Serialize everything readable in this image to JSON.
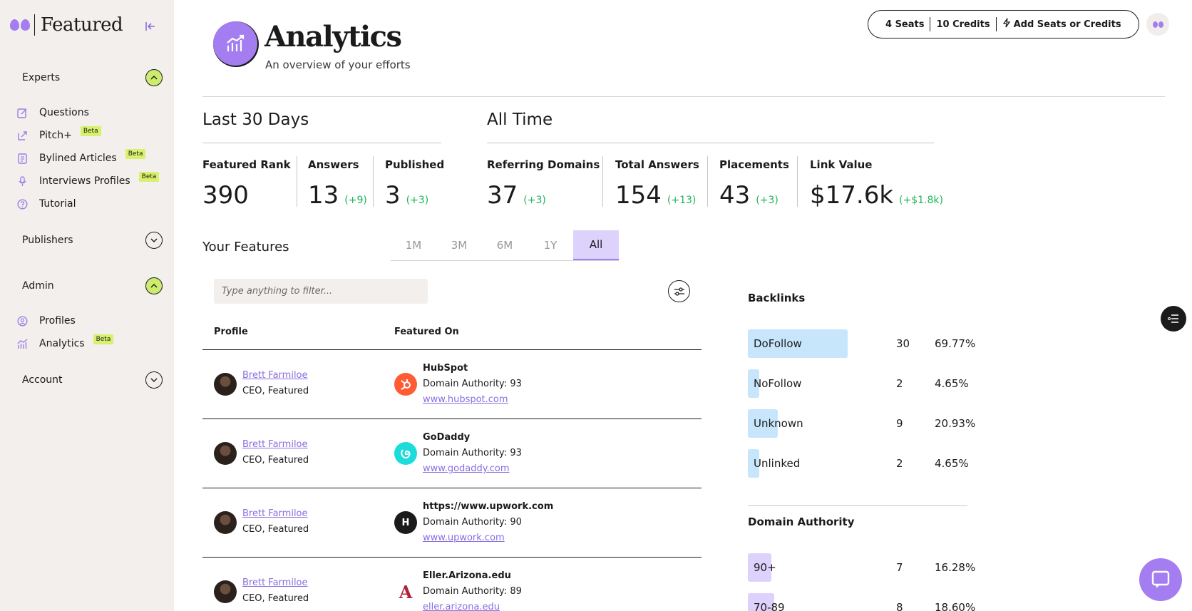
{
  "brand": {
    "name": "Featured"
  },
  "sidebar": {
    "sections": [
      {
        "label": "Experts",
        "expanded": true
      },
      {
        "label": "Publishers",
        "expanded": false
      },
      {
        "label": "Admin",
        "expanded": true
      },
      {
        "label": "Account",
        "expanded": false
      }
    ],
    "expert_items": [
      {
        "label": "Questions",
        "icon": "edit-icon"
      },
      {
        "label": "Pitch+",
        "icon": "share-icon",
        "badge": "Beta"
      },
      {
        "label": "Bylined Articles",
        "icon": "article-icon",
        "badge": "Beta"
      },
      {
        "label": "Interviews Profiles",
        "icon": "microphone-icon",
        "badge": "Beta"
      },
      {
        "label": "Tutorial",
        "icon": "help-icon"
      }
    ],
    "admin_items": [
      {
        "label": "Profiles",
        "icon": "user-icon"
      },
      {
        "label": "Analytics",
        "icon": "chart-icon",
        "badge": "Beta"
      }
    ]
  },
  "header": {
    "title": "Analytics",
    "subtitle": "An overview of your efforts"
  },
  "topbar": {
    "seats": "4 Seats",
    "credits": "10 Credits",
    "add_label": "Add Seats or Credits"
  },
  "last30": {
    "title": "Last 30 Days",
    "stats": [
      {
        "label": "Featured Rank",
        "value": "390",
        "delta": ""
      },
      {
        "label": "Answers",
        "value": "13",
        "delta": "(+9)"
      },
      {
        "label": "Published",
        "value": "3",
        "delta": "(+3)"
      }
    ]
  },
  "alltime": {
    "title": "All Time",
    "stats": [
      {
        "label": "Referring Domains",
        "value": "37",
        "delta": "(+3)"
      },
      {
        "label": "Total Answers",
        "value": "154",
        "delta": "(+13)"
      },
      {
        "label": "Placements",
        "value": "43",
        "delta": "(+3)"
      },
      {
        "label": "Link Value",
        "value": "$17.6k",
        "delta": "(+$1.8k)"
      }
    ]
  },
  "features": {
    "label": "Your Features",
    "ranges": [
      "1M",
      "3M",
      "6M",
      "1Y",
      "All"
    ],
    "active_range": "All",
    "filter_placeholder": "Type anything to filter...",
    "columns": [
      "Profile",
      "Featured On"
    ],
    "rows": [
      {
        "name": "Brett Farmiloe",
        "role": "CEO, Featured",
        "site": "HubSpot",
        "da": "Domain Authority: 93",
        "url": "www.hubspot.com",
        "logo_color": "#ff5c35",
        "logo_text": ""
      },
      {
        "name": "Brett Farmiloe",
        "role": "CEO, Featured",
        "site": "GoDaddy",
        "da": "Domain Authority: 93",
        "url": "www.godaddy.com",
        "logo_color": "#1bdbdb",
        "logo_text": ""
      },
      {
        "name": "Brett Farmiloe",
        "role": "CEO, Featured",
        "site": "https://www.upwork.com",
        "da": "Domain Authority: 90",
        "url": "www.upwork.com",
        "logo_color": "#1b1b1b",
        "logo_text": "H"
      },
      {
        "name": "Brett Farmiloe",
        "role": "CEO, Featured",
        "site": "Eller.Arizona.edu",
        "da": "Domain Authority: 89",
        "url": "eller.arizona.edu",
        "logo_color": "#ffffff",
        "logo_text": "A"
      }
    ]
  },
  "backlinks": {
    "title": "Backlinks",
    "items": [
      {
        "label": "DoFollow",
        "count": "30",
        "pct": "69.77%",
        "fraction": 0.6977
      },
      {
        "label": "NoFollow",
        "count": "2",
        "pct": "4.65%",
        "fraction": 0.0465
      },
      {
        "label": "Unknown",
        "count": "9",
        "pct": "20.93%",
        "fraction": 0.2093
      },
      {
        "label": "Unlinked",
        "count": "2",
        "pct": "4.65%",
        "fraction": 0.0465
      }
    ],
    "color": "#c7e6fb"
  },
  "domain_authority": {
    "title": "Domain Authority",
    "items": [
      {
        "label": "90+",
        "count": "7",
        "pct": "16.28%",
        "fraction": 0.1628
      },
      {
        "label": "70-89",
        "count": "8",
        "pct": "18.60%",
        "fraction": 0.186
      }
    ],
    "color": "#ddd2fb"
  }
}
